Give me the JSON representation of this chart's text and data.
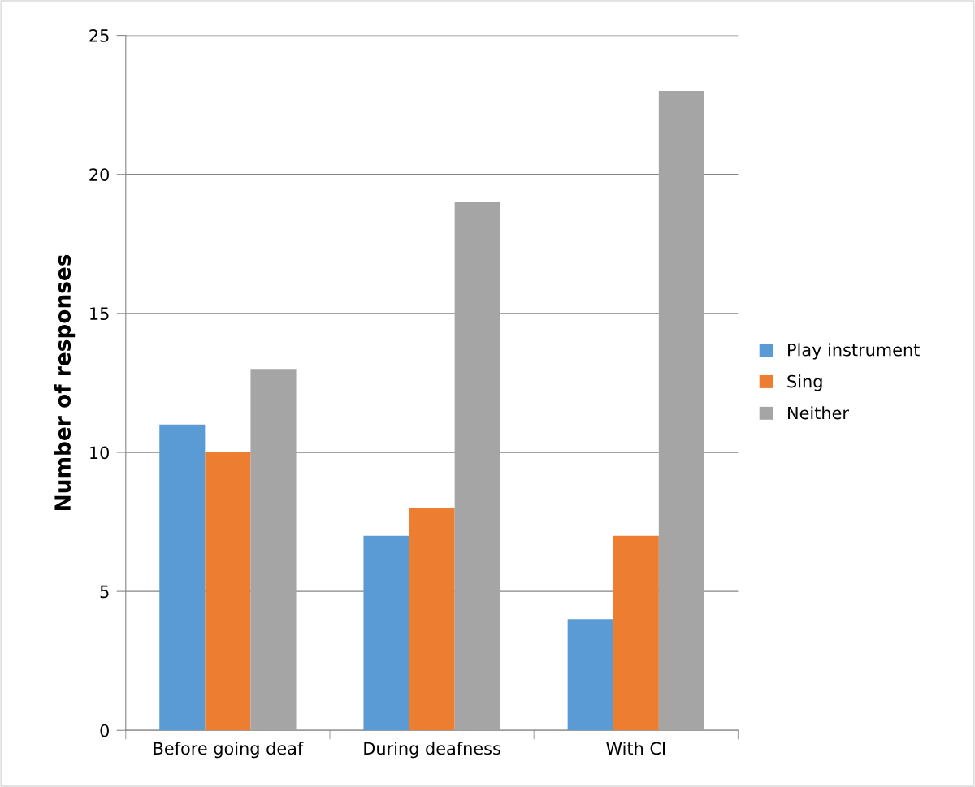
{
  "chart_data": {
    "type": "bar",
    "ylabel": "Number of responses",
    "categories": [
      "Before going deaf",
      "During deafness",
      "With CI"
    ],
    "series": [
      {
        "name": "Play instrument",
        "color": "#5b9bd5",
        "values": [
          11,
          7,
          4
        ]
      },
      {
        "name": "Sing",
        "color": "#ed7d31",
        "values": [
          10,
          8,
          7
        ]
      },
      {
        "name": "Neither",
        "color": "#a5a5a5",
        "values": [
          13,
          19,
          23
        ]
      }
    ],
    "ylim": [
      0,
      25
    ],
    "yticks": [
      0,
      5,
      10,
      15,
      20,
      25
    ],
    "grid": "y",
    "legend": "right"
  }
}
